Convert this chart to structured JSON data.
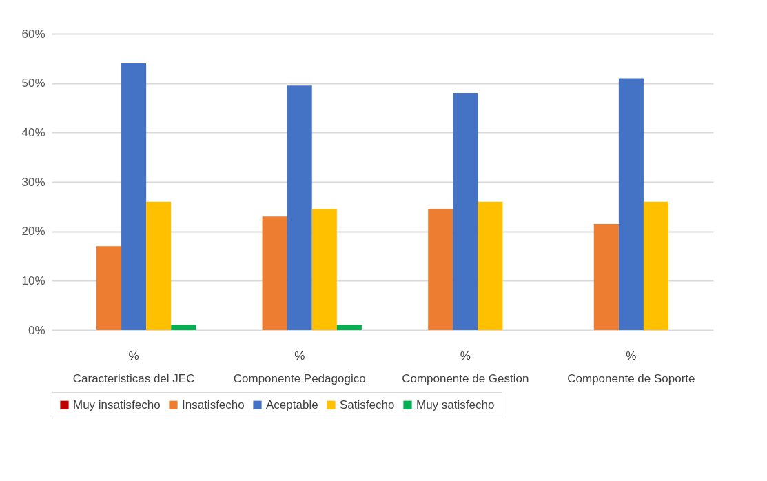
{
  "chart_data": {
    "type": "bar",
    "categories": [
      "Caracteristicas del JEC",
      "Componente Pedagogico",
      "Componente de Gestion",
      "Componente de Soporte"
    ],
    "series": [
      {
        "name": "Muy insatisfecho",
        "color": "#c00000",
        "values": [
          0,
          0,
          0,
          0
        ]
      },
      {
        "name": "Insatisfecho",
        "color": "#ed7d31",
        "values": [
          17,
          23,
          24.5,
          21.5
        ]
      },
      {
        "name": "Aceptable",
        "color": "#4472c4",
        "values": [
          54,
          49.5,
          48,
          51
        ]
      },
      {
        "name": "Satisfecho",
        "color": "#ffc000",
        "values": [
          26,
          24.5,
          26,
          26
        ]
      },
      {
        "name": "Muy satisfecho",
        "color": "#00b050",
        "values": [
          1,
          1,
          0,
          0
        ]
      }
    ],
    "ylim": [
      0,
      60
    ],
    "yticks": [
      {
        "value": 0,
        "label": "0%"
      },
      {
        "value": 10,
        "label": "10%"
      },
      {
        "value": 20,
        "label": "20%"
      },
      {
        "value": 30,
        "label": "30%"
      },
      {
        "value": 40,
        "label": "40%"
      },
      {
        "value": 50,
        "label": "50%"
      },
      {
        "value": 60,
        "label": "60%"
      }
    ],
    "annotations": [
      "%",
      "%",
      "%",
      "%"
    ],
    "grid": "y",
    "legend": "bottom"
  }
}
